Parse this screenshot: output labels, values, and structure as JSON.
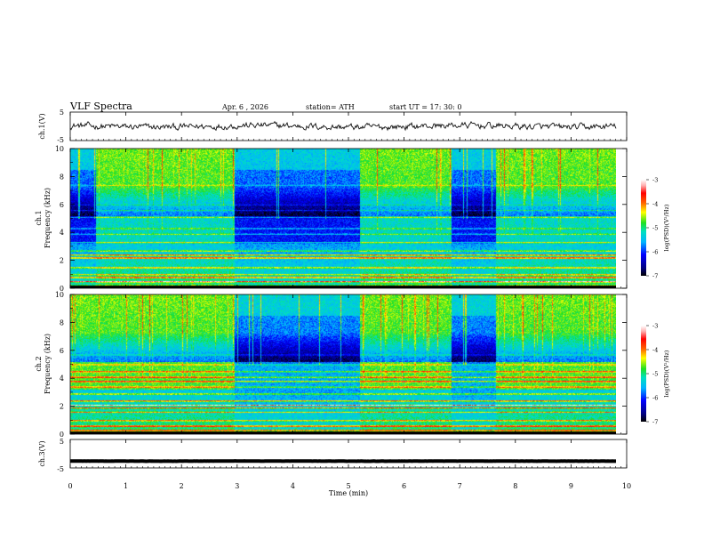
{
  "header": {
    "title": "VLF  Spectra",
    "date": "Apr. 6  , 2026",
    "station": "station= ATH",
    "start": "start  UT  =   17: 30: 0"
  },
  "colors": {
    "wave": "#111111",
    "axis": "#000000",
    "background": "#ffffff"
  },
  "chart_data": [
    {
      "type": "line",
      "name": "ch1-waveform",
      "ylabel": "ch.1(V)",
      "ylim": [
        -5,
        5
      ],
      "yticks": [
        "5",
        "-5"
      ],
      "xlim": [
        0,
        10
      ],
      "approx_level_V": 0
    },
    {
      "type": "heatmap",
      "name": "ch1-spectrogram",
      "ylabel": "ch.1\nFrequency  (kHz)",
      "ylabel_lines": [
        "ch.1",
        "Frequency  (kHz)"
      ],
      "ylim_kHz": [
        0,
        10
      ],
      "yticks": [
        "0",
        "2",
        "4",
        "6",
        "8",
        "10"
      ],
      "xlim_min": [
        0,
        9.82
      ],
      "quiet_intervals_min": [
        [
          0,
          0.45
        ],
        [
          2.95,
          5.2
        ],
        [
          6.85,
          7.65
        ]
      ],
      "colorbar": {
        "label": "log(PSD)(V²/Hz)",
        "range": [
          -7,
          -3
        ],
        "ticks": [
          "-3",
          "-4",
          "-5",
          "-6",
          "-7"
        ]
      }
    },
    {
      "type": "heatmap",
      "name": "ch2-spectrogram",
      "ylabel": "ch.2\nFrequency  (kHz)",
      "ylabel_lines": [
        "ch.2",
        "Frequency  (kHz)"
      ],
      "ylim_kHz": [
        0,
        10
      ],
      "yticks": [
        "0",
        "2",
        "4",
        "6",
        "8",
        "10"
      ],
      "xlim_min": [
        0,
        9.82
      ],
      "quiet_intervals_min": [
        [
          2.95,
          5.2
        ],
        [
          6.85,
          7.65
        ]
      ],
      "colorbar": {
        "label": "log(PSD)(V²/Hz)",
        "range": [
          -7,
          -3
        ],
        "ticks": [
          "-3",
          "-4",
          "-5",
          "-6",
          "-7"
        ]
      }
    },
    {
      "type": "line",
      "name": "ch3-waveform",
      "ylabel": "ch.3(V)",
      "ylim": [
        -5,
        5
      ],
      "yticks": [
        "5",
        "-5"
      ],
      "xlim": [
        0,
        10
      ],
      "approx_level_V": -2.6
    }
  ],
  "xaxis": {
    "label": "Time  (min)",
    "ticks": [
      "0",
      "1",
      "2",
      "3",
      "4",
      "5",
      "6",
      "7",
      "8",
      "9",
      "10"
    ]
  }
}
